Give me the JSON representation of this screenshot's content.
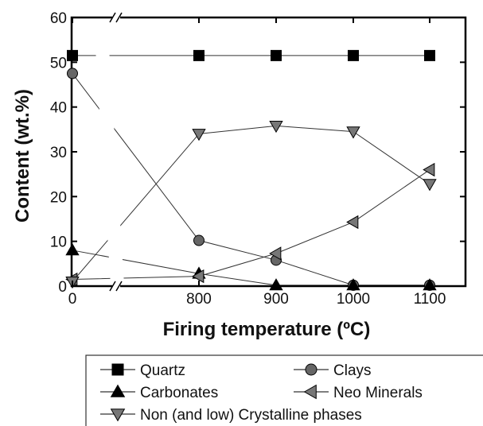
{
  "chart_data": {
    "type": "line",
    "title": "",
    "xlabel": "Firing temperature (ºC)",
    "ylabel": "Content (wt.%)",
    "x": [
      0,
      800,
      900,
      1000,
      1100
    ],
    "x_tick_labels": [
      "0",
      "800",
      "900",
      "1000",
      "1100"
    ],
    "x_axis_break": "between 0 and 800",
    "ylim": [
      0,
      60
    ],
    "y_ticks": [
      0,
      10,
      20,
      30,
      40,
      50,
      60
    ],
    "grid": false,
    "legend_placement": "bottom (below plot)",
    "series": [
      {
        "name": "Quartz",
        "marker": "square",
        "color": "#000000",
        "values": [
          51.5,
          51.5,
          51.5,
          51.5,
          51.5
        ]
      },
      {
        "name": "Clays",
        "marker": "circle",
        "color": "#666666",
        "values": [
          47.5,
          10.2,
          5.8,
          0.2,
          0.2
        ]
      },
      {
        "name": "Carbonates",
        "marker": "triangle-up",
        "color": "#000000",
        "values": [
          8.0,
          2.8,
          0.2,
          0.2,
          0.2
        ]
      },
      {
        "name": "Neo Minerals",
        "marker": "triangle-left",
        "color": "#777777",
        "values": [
          1.5,
          2.2,
          7.3,
          14.3,
          26.0
        ]
      },
      {
        "name": "Non (and low) Crystalline phases",
        "marker": "triangle-down",
        "color": "#777777",
        "values": [
          1.0,
          34.0,
          35.8,
          34.5,
          22.8
        ]
      }
    ]
  }
}
